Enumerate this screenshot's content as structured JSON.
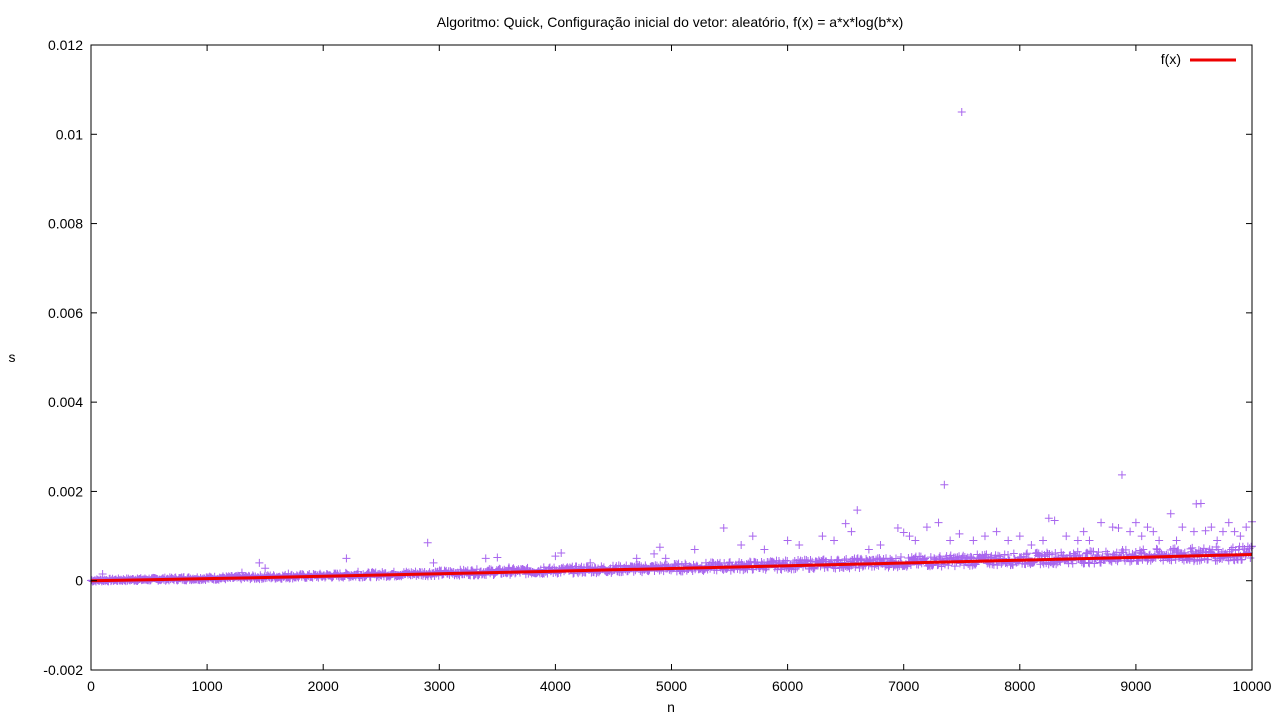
{
  "chart_data": {
    "type": "scatter",
    "title": "Algoritmo: Quick, Configuração inicial do vetor: aleatório, f(x) = a*x*log(b*x)",
    "xlabel": "n",
    "ylabel": "s",
    "xlim": [
      0,
      10000
    ],
    "ylim": [
      -0.002,
      0.012
    ],
    "xticks": [
      "0",
      "1000",
      "2000",
      "3000",
      "4000",
      "5000",
      "6000",
      "7000",
      "8000",
      "9000",
      "10000"
    ],
    "yticks": [
      "-0.002",
      "0",
      "0.002",
      "0.004",
      "0.006",
      "0.008",
      "0.01",
      "0.012"
    ],
    "grid": false,
    "legend_position": "top-right",
    "series": [
      {
        "kind": "points",
        "color": "#a866ee",
        "marker": "plus",
        "x": [
          100,
          400,
          800,
          1300,
          1450,
          1500,
          1700,
          2200,
          2300,
          2900,
          2950,
          3400,
          3500,
          3600,
          3900,
          4000,
          4050,
          4300,
          4700,
          4850,
          4900,
          4950,
          5200,
          5450,
          5600,
          5700,
          5800,
          6000,
          6100,
          6300,
          6400,
          6500,
          6550,
          6600,
          6700,
          6800,
          6950,
          7000,
          7050,
          7100,
          7200,
          7300,
          7350,
          7400,
          7480,
          7500,
          7600,
          7700,
          7800,
          7900,
          8000,
          8100,
          8200,
          8250,
          8300,
          8400,
          8500,
          8550,
          8600,
          8700,
          8800,
          8850,
          8880,
          8950,
          9000,
          9050,
          9100,
          9150,
          9200,
          9300,
          9350,
          9400,
          9500,
          9520,
          9560,
          9600,
          9650,
          9700,
          9750,
          9800,
          9850,
          9900,
          9950,
          10000
        ],
        "y": [
          0.00015,
          5e-05,
          8e-05,
          0.00018,
          0.0004,
          0.00028,
          0.00016,
          0.0005,
          0.0002,
          0.00085,
          0.0004,
          0.0005,
          0.00052,
          0.0003,
          0.0003,
          0.00055,
          0.00062,
          0.0004,
          0.0005,
          0.0006,
          0.00075,
          0.0005,
          0.0007,
          0.00118,
          0.0008,
          0.001,
          0.0007,
          0.0009,
          0.0008,
          0.001,
          0.0009,
          0.00128,
          0.0011,
          0.00158,
          0.0007,
          0.0008,
          0.00118,
          0.00108,
          0.001,
          0.0009,
          0.0012,
          0.0013,
          0.00215,
          0.0009,
          0.00105,
          0.0105,
          0.0009,
          0.001,
          0.0011,
          0.0009,
          0.001,
          0.0008,
          0.0009,
          0.0014,
          0.00135,
          0.001,
          0.0009,
          0.0011,
          0.0009,
          0.0013,
          0.0012,
          0.00118,
          0.00237,
          0.0011,
          0.0013,
          0.001,
          0.0012,
          0.0011,
          0.0009,
          0.0015,
          0.0009,
          0.0012,
          0.0011,
          0.00172,
          0.00173,
          0.00112,
          0.0012,
          0.0009,
          0.0011,
          0.0013,
          0.0011,
          0.001,
          0.0012,
          0.00132
        ]
      },
      {
        "name": "f(x)",
        "kind": "line",
        "color": "#ee0000",
        "x": [
          1,
          500,
          1000,
          1500,
          2000,
          2500,
          3000,
          3500,
          4000,
          4500,
          5000,
          5500,
          6000,
          6500,
          7000,
          7500,
          8000,
          8500,
          9000,
          9500,
          10000
        ],
        "y": [
          0,
          2.2e-05,
          4.7e-05,
          7.3e-05,
          0.0001,
          0.000128,
          0.000156,
          0.000185,
          0.000214,
          0.000244,
          0.000274,
          0.000304,
          0.000335,
          0.000365,
          0.000396,
          0.000428,
          0.000459,
          0.000491,
          0.000523,
          0.000555,
          0.000587
        ]
      }
    ]
  }
}
